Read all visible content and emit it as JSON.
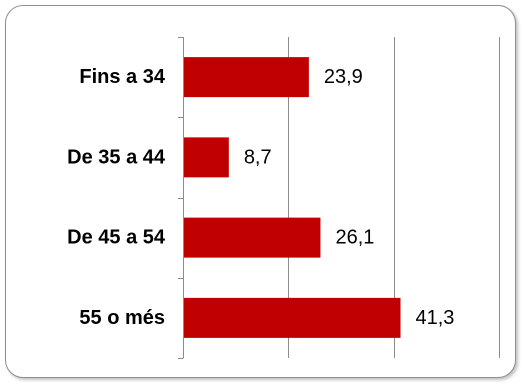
{
  "chart_data": {
    "type": "bar",
    "orientation": "horizontal",
    "categories": [
      "Fins a 34",
      "De 35 a 44",
      "De 45 a 54",
      "55 o més"
    ],
    "values": [
      23.9,
      8.7,
      26.1,
      41.3
    ],
    "value_labels": [
      "23,9",
      "8,7",
      "26,1",
      "41,3"
    ],
    "xlim": [
      0,
      60
    ],
    "gridlines": [
      0,
      20,
      40,
      60
    ],
    "grid": true,
    "legend": "none",
    "bar_color": "#c00000"
  }
}
